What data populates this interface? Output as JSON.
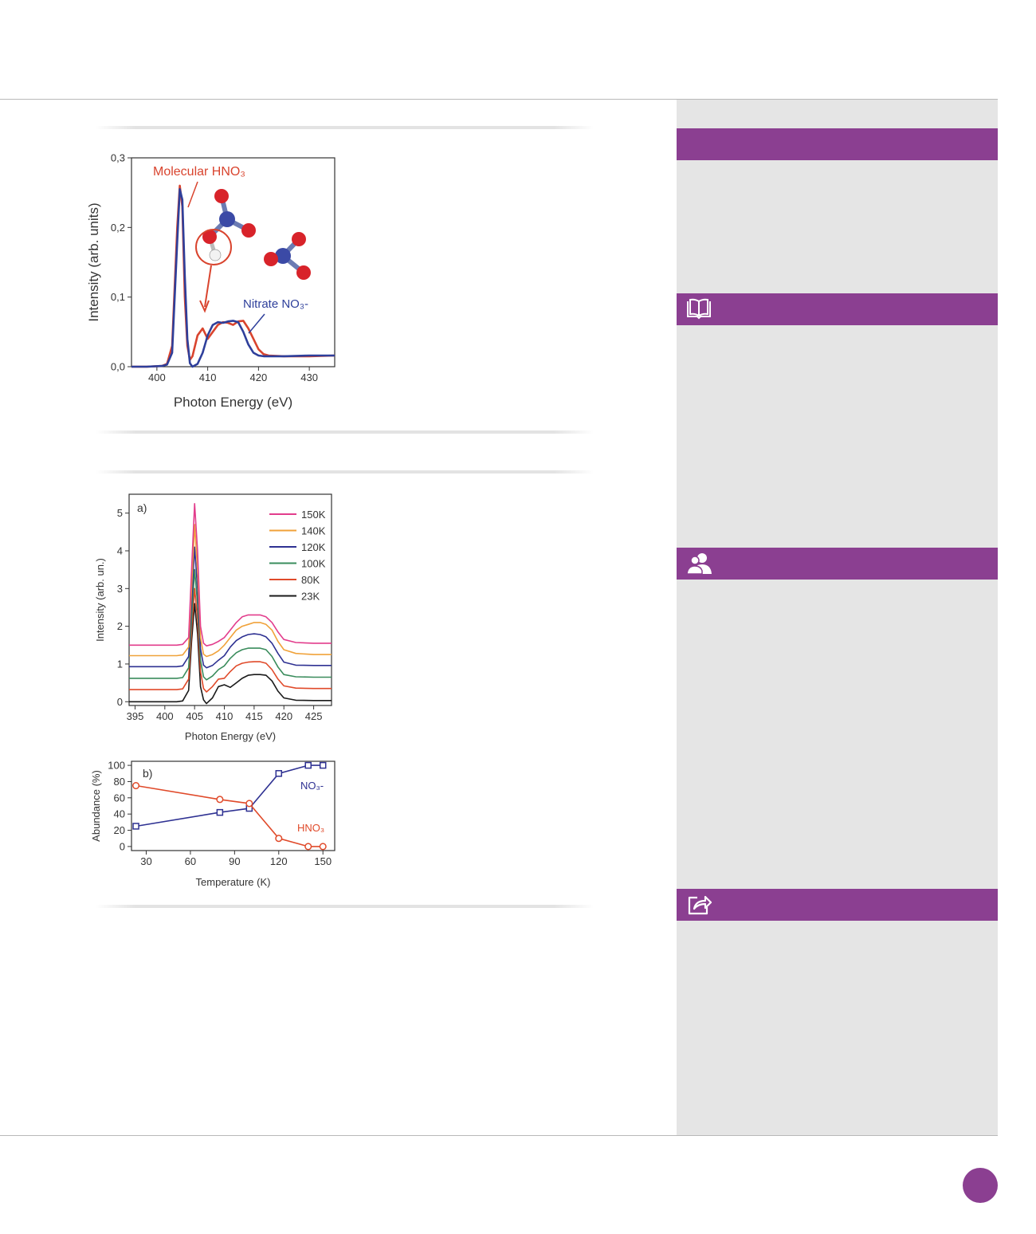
{
  "colors": {
    "accent": "#8b3f91",
    "sidebar": "#e5e5e5"
  },
  "sidebar": {
    "bars": [
      {
        "icon": ""
      },
      {
        "icon": "open-book-icon"
      },
      {
        "icon": "user-profile-icon"
      },
      {
        "icon": "share-icon"
      }
    ]
  },
  "chart_data": [
    {
      "type": "line",
      "title": "",
      "xlabel": "Photon Energy (eV)",
      "ylabel": "Intensity (arb. units)",
      "xlim": [
        395,
        435
      ],
      "ylim": [
        0,
        0.3
      ],
      "xticks": [
        "400",
        "410",
        "420",
        "430"
      ],
      "xtick_values": [
        400,
        410,
        420,
        430
      ],
      "yticks": [
        "0,0",
        "0,1",
        "0,2",
        "0,3"
      ],
      "ytick_values": [
        0,
        0.1,
        0.2,
        0.3
      ],
      "annotations": [
        "Molecular HNO₃",
        "Nitrate NO₃-"
      ],
      "series": [
        {
          "name": "Molecular HNO₃",
          "color": "#d9442e",
          "x": [
            395,
            398,
            401,
            402,
            403,
            404,
            404.5,
            405,
            405.5,
            406,
            406.5,
            407,
            408,
            409,
            410,
            411,
            412,
            413,
            414,
            415,
            416,
            417,
            418,
            419,
            420,
            421,
            422,
            425,
            430,
            435
          ],
          "y": [
            0.0,
            0.0,
            0.001,
            0.004,
            0.03,
            0.2,
            0.26,
            0.23,
            0.1,
            0.03,
            0.01,
            0.015,
            0.045,
            0.055,
            0.04,
            0.05,
            0.06,
            0.064,
            0.063,
            0.06,
            0.065,
            0.066,
            0.055,
            0.04,
            0.025,
            0.018,
            0.016,
            0.015,
            0.015,
            0.016
          ]
        },
        {
          "name": "Nitrate NO₃-",
          "color": "#2e3f9b",
          "x": [
            395,
            398,
            401,
            402,
            403,
            404,
            404.5,
            405,
            405.5,
            406,
            406.5,
            407,
            408,
            409,
            410,
            411,
            412,
            413,
            414,
            415,
            416,
            417,
            418,
            419,
            420,
            421,
            422,
            425,
            430,
            435
          ],
          "y": [
            0.0,
            0.0,
            0.001,
            0.003,
            0.02,
            0.18,
            0.255,
            0.24,
            0.13,
            0.04,
            0.005,
            0.0,
            0.004,
            0.02,
            0.045,
            0.06,
            0.064,
            0.063,
            0.065,
            0.066,
            0.064,
            0.05,
            0.032,
            0.02,
            0.016,
            0.015,
            0.015,
            0.015,
            0.016,
            0.016
          ]
        }
      ]
    },
    {
      "type": "line",
      "title": "",
      "panel_label": "a)",
      "xlabel": "Photon Energy (eV)",
      "ylabel": "Intensity (arb. un.)",
      "xlim": [
        394,
        428
      ],
      "ylim": [
        -0.1,
        5.5
      ],
      "xticks": [
        "395",
        "400",
        "405",
        "410",
        "415",
        "420",
        "425"
      ],
      "xtick_values": [
        395,
        400,
        405,
        410,
        415,
        420,
        425
      ],
      "yticks": [
        "0",
        "1",
        "2",
        "3",
        "4",
        "5"
      ],
      "ytick_values": [
        0,
        1,
        2,
        3,
        4,
        5
      ],
      "legend_position": "top-right",
      "x": [
        394,
        400,
        402,
        403,
        404,
        404.5,
        405,
        405.5,
        406,
        406.5,
        407,
        408,
        409,
        410,
        411,
        412,
        413,
        414,
        415,
        416,
        417,
        418,
        419,
        420,
        422,
        425,
        428
      ],
      "series": [
        {
          "name": "150K",
          "color": "#e23d8c",
          "y": [
            1.5,
            1.5,
            1.5,
            1.52,
            1.7,
            3.5,
            5.25,
            4.0,
            2.0,
            1.55,
            1.48,
            1.52,
            1.6,
            1.7,
            1.9,
            2.1,
            2.25,
            2.3,
            2.3,
            2.3,
            2.25,
            2.1,
            1.85,
            1.65,
            1.57,
            1.55,
            1.55
          ]
        },
        {
          "name": "140K",
          "color": "#f0a23a",
          "y": [
            1.22,
            1.22,
            1.22,
            1.24,
            1.45,
            3.0,
            4.7,
            3.5,
            1.7,
            1.26,
            1.2,
            1.25,
            1.35,
            1.5,
            1.7,
            1.9,
            2.0,
            2.05,
            2.1,
            2.1,
            2.05,
            1.9,
            1.6,
            1.38,
            1.28,
            1.25,
            1.25
          ]
        },
        {
          "name": "120K",
          "color": "#2e3192",
          "y": [
            0.93,
            0.93,
            0.93,
            0.95,
            1.2,
            2.6,
            4.1,
            3.0,
            1.4,
            0.97,
            0.9,
            0.96,
            1.1,
            1.22,
            1.45,
            1.62,
            1.72,
            1.78,
            1.8,
            1.78,
            1.72,
            1.55,
            1.28,
            1.05,
            0.97,
            0.96,
            0.96
          ]
        },
        {
          "name": "100K",
          "color": "#3a8c5c",
          "y": [
            0.62,
            0.62,
            0.62,
            0.64,
            0.9,
            2.2,
            3.5,
            2.6,
            1.1,
            0.66,
            0.58,
            0.68,
            0.85,
            0.95,
            1.15,
            1.3,
            1.38,
            1.42,
            1.42,
            1.42,
            1.38,
            1.2,
            0.92,
            0.72,
            0.66,
            0.65,
            0.65
          ]
        },
        {
          "name": "80K",
          "color": "#e04a2a",
          "y": [
            0.32,
            0.32,
            0.32,
            0.34,
            0.6,
            1.9,
            3.0,
            2.2,
            0.8,
            0.35,
            0.26,
            0.4,
            0.6,
            0.62,
            0.8,
            0.95,
            1.02,
            1.05,
            1.06,
            1.06,
            1.02,
            0.85,
            0.6,
            0.42,
            0.36,
            0.35,
            0.35
          ]
        },
        {
          "name": "23K",
          "color": "#1a1a1a",
          "y": [
            0.0,
            0.0,
            0.0,
            0.02,
            0.3,
            1.6,
            2.6,
            1.8,
            0.4,
            0.05,
            -0.05,
            0.1,
            0.4,
            0.45,
            0.38,
            0.5,
            0.62,
            0.7,
            0.72,
            0.72,
            0.7,
            0.55,
            0.28,
            0.1,
            0.04,
            0.03,
            0.03
          ]
        }
      ]
    },
    {
      "type": "line",
      "title": "",
      "panel_label": "b)",
      "xlabel": "Temperature (K)",
      "ylabel": "Abundance (%)",
      "xlim": [
        20,
        158
      ],
      "ylim": [
        -5,
        105
      ],
      "xticks": [
        "30",
        "60",
        "90",
        "120",
        "150"
      ],
      "xtick_values": [
        30,
        60,
        90,
        120,
        150
      ],
      "yticks": [
        "0",
        "20",
        "40",
        "60",
        "80",
        "100"
      ],
      "ytick_values": [
        0,
        20,
        40,
        60,
        80,
        100
      ],
      "annotations": [
        "NO₃-",
        "HNO₃"
      ],
      "x": [
        23,
        80,
        100,
        120,
        140,
        150
      ],
      "series": [
        {
          "name": "NO₃-",
          "color": "#2e3192",
          "marker": "square",
          "y": [
            25,
            42,
            47,
            90,
            100,
            100
          ]
        },
        {
          "name": "HNO₃",
          "color": "#e04a2a",
          "marker": "circle",
          "y": [
            75,
            58,
            53,
            10,
            0,
            0
          ]
        }
      ]
    }
  ]
}
